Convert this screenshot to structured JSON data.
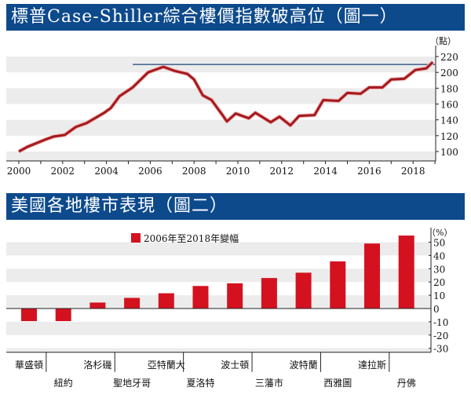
{
  "chart_data": [
    {
      "type": "line",
      "title": "標普Case-Shiller綜合樓價指數破高位（圖一）",
      "ylabel": "（點）",
      "ylim": [
        88,
        225
      ],
      "xlim": [
        1999.5,
        2019.2
      ],
      "yticks": [
        100,
        120,
        140,
        160,
        180,
        200,
        220
      ],
      "xticks": [
        2000,
        2002,
        2004,
        2006,
        2008,
        2010,
        2012,
        2014,
        2016,
        2018
      ],
      "series": [
        {
          "name": "Case-Shiller Index",
          "color": "#a31a1e",
          "x": [
            2000,
            2000.4,
            2001.2,
            2001.6,
            2002.1,
            2002.6,
            2003.1,
            2003.9,
            2004.2,
            2004.6,
            2005.2,
            2005.9,
            2006.6,
            2007.1,
            2007.7,
            2008.0,
            2008.4,
            2008.8,
            2009.3,
            2009.5,
            2009.9,
            2010.5,
            2010.8,
            2011.5,
            2011.9,
            2012.4,
            2012.8,
            2013.5,
            2013.9,
            2014.6,
            2015.0,
            2015.6,
            2016.0,
            2016.6,
            2017.0,
            2017.6,
            2018.1,
            2018.6,
            2018.9
          ],
          "y": [
            100,
            106,
            115,
            119,
            121,
            131,
            136,
            149,
            155,
            170,
            181,
            200,
            207,
            202,
            198,
            191,
            171,
            165,
            146,
            138,
            148,
            142,
            149,
            137,
            144,
            133,
            145,
            146,
            165,
            164,
            174,
            173,
            181,
            181,
            191,
            192,
            203,
            205,
            213
          ]
        }
      ],
      "reference_line": {
        "y": 210,
        "x": [
          2005.2,
          2019.0
        ],
        "color": "#3d5f8a"
      }
    },
    {
      "type": "bar",
      "title": "美國各地樓市表現（圖二）",
      "ylabel": "（%）",
      "legend": "2006年至2018年變幅",
      "legend_position": "top-center",
      "ylim": [
        -33,
        56
      ],
      "yticks": [
        50,
        40,
        30,
        20,
        10,
        0,
        -10,
        -20,
        -30
      ],
      "categories": [
        "華盛頓",
        "紐約",
        "洛杉磯",
        "聖地牙哥",
        "亞特蘭大",
        "夏洛特",
        "波士頓",
        "三藩市",
        "波特蘭",
        "西雅圖",
        "達拉斯",
        "丹佛"
      ],
      "values": [
        -9.5,
        -9.5,
        4.5,
        8,
        11.5,
        17,
        19,
        23,
        27,
        35.5,
        49,
        55
      ],
      "color": "#d4121f"
    }
  ]
}
